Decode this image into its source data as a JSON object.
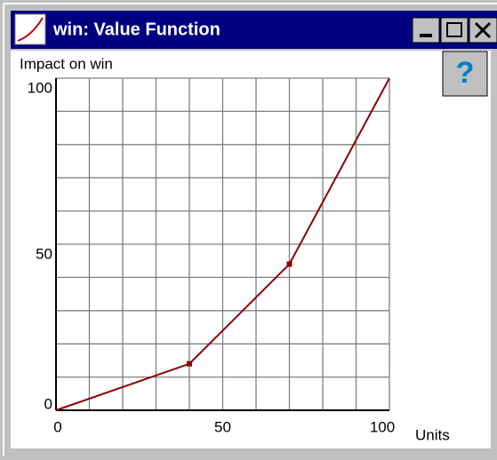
{
  "window": {
    "title": "win: Value Function",
    "help": "?"
  },
  "chart_data": {
    "type": "line",
    "y_label": "Impact on win",
    "x_label": "Units",
    "x": [
      0,
      40,
      70,
      100
    ],
    "series": [
      {
        "color": "#8b0000",
        "values": [
          0,
          14,
          44,
          100
        ],
        "markers": [
          false,
          true,
          true,
          false
        ]
      }
    ],
    "xlim": [
      0,
      100
    ],
    "ylim": [
      0,
      100
    ],
    "xticks": [
      0,
      50,
      100
    ],
    "yticks": [
      0,
      50,
      100
    ],
    "xgrid": [
      0,
      10,
      20,
      30,
      40,
      50,
      60,
      70,
      80,
      90,
      100
    ],
    "ygrid": [
      0,
      10,
      20,
      30,
      40,
      50,
      60,
      70,
      80,
      90,
      100
    ],
    "grid": true
  }
}
